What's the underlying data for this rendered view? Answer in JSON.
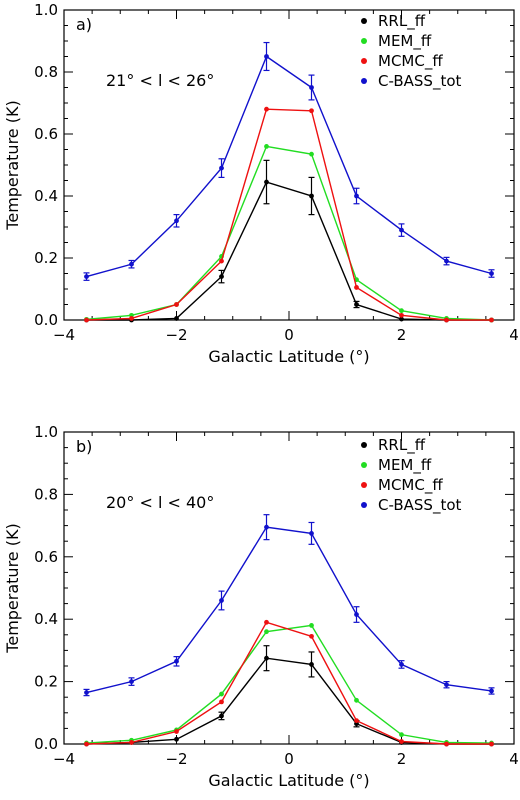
{
  "chart_data": [
    {
      "type": "line",
      "panel_label": "a)",
      "annotation": "21° < l < 26°",
      "title": "",
      "xlabel": "Galactic Latitude (°)",
      "ylabel": "Temperature (K)",
      "xlim": [
        -4,
        4
      ],
      "ylim": [
        0,
        1.0
      ],
      "xticks": [
        "−4",
        "−2",
        "0",
        "2",
        "4"
      ],
      "yticks": [
        "0.0",
        "0.2",
        "0.4",
        "0.6",
        "0.8",
        "1.0"
      ],
      "legend_position": "top-right",
      "x": [
        -3.6,
        -2.8,
        -2.0,
        -1.2,
        -0.4,
        0.4,
        1.2,
        2.0,
        2.8,
        3.6
      ],
      "series": [
        {
          "name": "RRL_ff",
          "color": "#000000",
          "values": [
            0.0,
            0.0,
            0.005,
            0.14,
            0.445,
            0.4,
            0.05,
            0.003,
            0.0,
            0.0
          ],
          "errors": [
            0,
            0,
            0,
            0.02,
            0.07,
            0.06,
            0.01,
            0,
            0,
            0
          ]
        },
        {
          "name": "MEM_ff",
          "color": "#22dd22",
          "values": [
            0.002,
            0.015,
            0.05,
            0.205,
            0.56,
            0.535,
            0.13,
            0.03,
            0.005,
            0.0
          ],
          "errors": []
        },
        {
          "name": "MCMC_ff",
          "color": "#ee1111",
          "values": [
            0.0,
            0.005,
            0.05,
            0.19,
            0.68,
            0.675,
            0.105,
            0.015,
            0.0,
            0.0
          ],
          "errors": []
        },
        {
          "name": "C-BASS_tot",
          "color": "#1111cc",
          "values": [
            0.14,
            0.18,
            0.32,
            0.49,
            0.85,
            0.75,
            0.4,
            0.29,
            0.19,
            0.15
          ],
          "errors": [
            0.012,
            0.012,
            0.02,
            0.03,
            0.045,
            0.04,
            0.025,
            0.02,
            0.012,
            0.012
          ]
        }
      ]
    },
    {
      "type": "line",
      "panel_label": "b)",
      "annotation": "20° < l < 40°",
      "title": "",
      "xlabel": "Galactic Latitude (°)",
      "ylabel": "Temperature (K)",
      "xlim": [
        -4,
        4
      ],
      "ylim": [
        0,
        1.0
      ],
      "xticks": [
        "−4",
        "−2",
        "0",
        "2",
        "4"
      ],
      "yticks": [
        "0.0",
        "0.2",
        "0.4",
        "0.6",
        "0.8",
        "1.0"
      ],
      "legend_position": "top-right",
      "x": [
        -3.6,
        -2.8,
        -2.0,
        -1.2,
        -0.4,
        0.4,
        1.2,
        2.0,
        2.8,
        3.6
      ],
      "series": [
        {
          "name": "RRL_ff",
          "color": "#000000",
          "values": [
            0.0,
            0.005,
            0.015,
            0.09,
            0.275,
            0.255,
            0.065,
            0.005,
            0.0,
            0.0
          ],
          "errors": [
            0,
            0,
            0,
            0.012,
            0.04,
            0.04,
            0.01,
            0,
            0,
            0
          ]
        },
        {
          "name": "MEM_ff",
          "color": "#22dd22",
          "values": [
            0.003,
            0.012,
            0.045,
            0.16,
            0.36,
            0.38,
            0.14,
            0.03,
            0.005,
            0.003
          ],
          "errors": []
        },
        {
          "name": "MCMC_ff",
          "color": "#ee1111",
          "values": [
            0.0,
            0.005,
            0.04,
            0.135,
            0.39,
            0.345,
            0.075,
            0.008,
            0.0,
            0.0
          ],
          "errors": []
        },
        {
          "name": "C-BASS_tot",
          "color": "#1111cc",
          "values": [
            0.165,
            0.2,
            0.265,
            0.46,
            0.695,
            0.675,
            0.415,
            0.255,
            0.19,
            0.17
          ],
          "errors": [
            0.01,
            0.012,
            0.015,
            0.03,
            0.04,
            0.035,
            0.025,
            0.012,
            0.01,
            0.01
          ]
        }
      ]
    }
  ]
}
